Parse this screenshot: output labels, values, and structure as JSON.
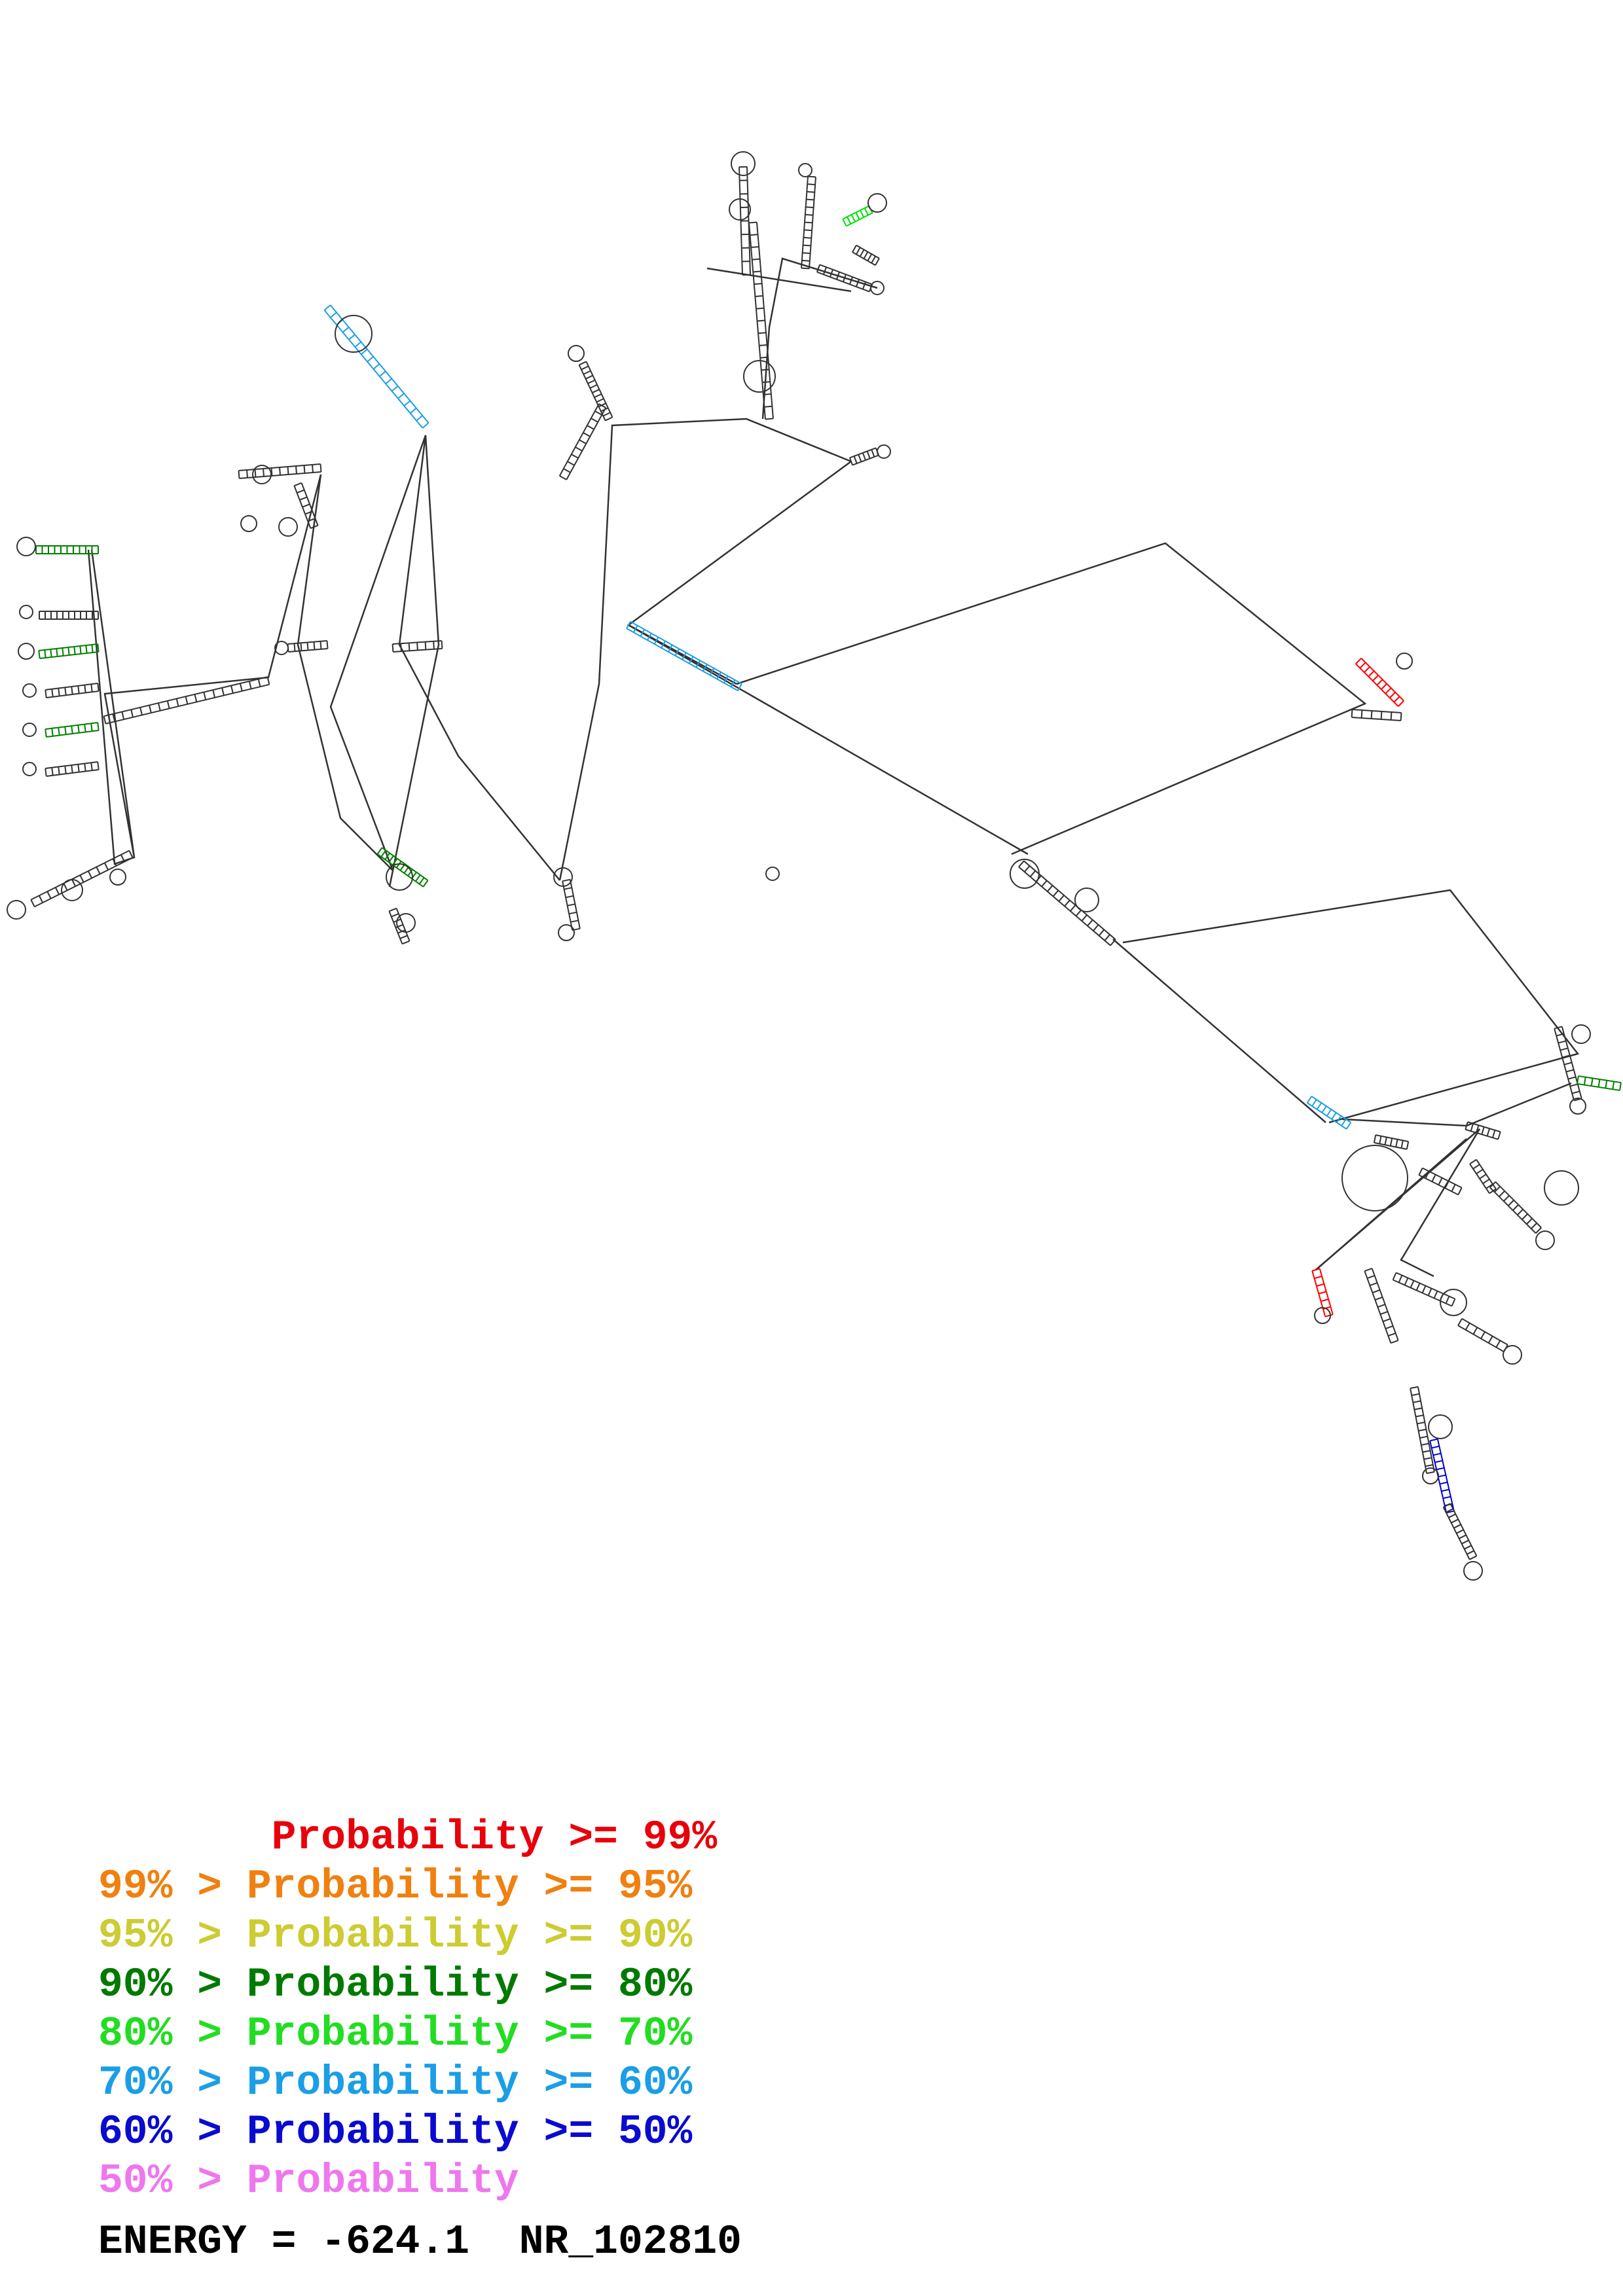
{
  "structure_colors": {
    "backbone": "#000000",
    "nucleotide": "#333333",
    "palette": [
      "#ff0000",
      "#ff8000",
      "#cccc33",
      "#008000",
      "#00dd00",
      "#1a9ee6",
      "#0000cc",
      "#ee77ee"
    ]
  },
  "legend": [
    {
      "prefix": "       ",
      "label": "Probability",
      "suffix": " >= 99%",
      "color": "#e8000a"
    },
    {
      "prefix": "99% > ",
      "label": "Probability",
      "suffix": " >= 95%",
      "color": "#f08010"
    },
    {
      "prefix": "95% > ",
      "label": "Probability",
      "suffix": " >= 90%",
      "color": "#cccc33"
    },
    {
      "prefix": "90% > ",
      "label": "Probability",
      "suffix": " >= 80%",
      "color": "#007a00"
    },
    {
      "prefix": "80% > ",
      "label": "Probability",
      "suffix": " >= 70%",
      "color": "#22dd22"
    },
    {
      "prefix": "70% > ",
      "label": "Probability",
      "suffix": " >= 60%",
      "color": "#1a9ee6"
    },
    {
      "prefix": "60% > ",
      "label": "Probability",
      "suffix": " >= 50%",
      "color": "#0a0ad0"
    },
    {
      "prefix": "50% > ",
      "label": "Probability",
      "suffix": "",
      "color": "#ee77ee"
    }
  ],
  "energy": {
    "label": "ENERGY = ",
    "value": "-624.1",
    "sequence_id": "NR_102810"
  }
}
